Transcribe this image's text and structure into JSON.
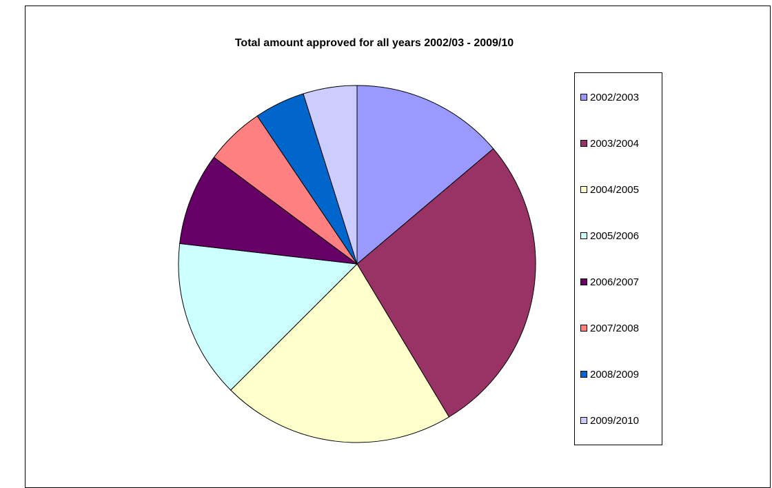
{
  "chart_data": {
    "type": "pie",
    "title": "Total amount approved for all years 2002/03 - 2009/10",
    "legend_position": "right",
    "categories": [
      "2002/2003",
      "2003/2004",
      "2004/2005",
      "2005/2006",
      "2006/2007",
      "2007/2008",
      "2008/2009",
      "2009/2010"
    ],
    "values": [
      14.2,
      28.3,
      21.7,
      14.7,
      8.6,
      5.5,
      4.7,
      5.0
    ],
    "value_unit": "percent of total",
    "colors": [
      "#9999FF",
      "#993366",
      "#FFFFCC",
      "#CCFFFF",
      "#660066",
      "#FF8080",
      "#0066CC",
      "#CCCCFF"
    ]
  }
}
